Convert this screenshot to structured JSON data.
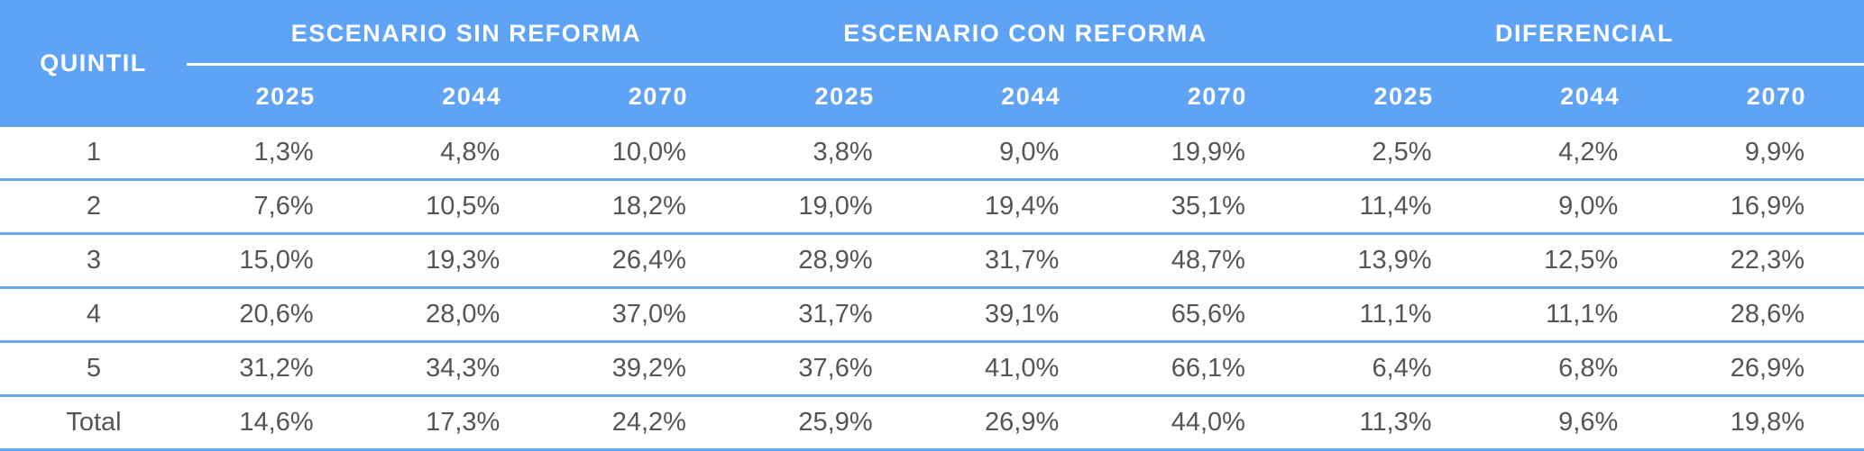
{
  "header": {
    "quintil": "QUINTIL",
    "groups": [
      "ESCENARIO SIN REFORMA",
      "ESCENARIO CON REFORMA",
      "DIFERENCIAL"
    ],
    "years": [
      "2025",
      "2044",
      "2070",
      "2025",
      "2044",
      "2070",
      "2025",
      "2044",
      "2070"
    ]
  },
  "rows": [
    {
      "quintil": "1",
      "values": [
        "1,3%",
        "4,8%",
        "10,0%",
        "3,8%",
        "9,0%",
        "19,9%",
        "2,5%",
        "4,2%",
        "9,9%"
      ]
    },
    {
      "quintil": "2",
      "values": [
        "7,6%",
        "10,5%",
        "18,2%",
        "19,0%",
        "19,4%",
        "35,1%",
        "11,4%",
        "9,0%",
        "16,9%"
      ]
    },
    {
      "quintil": "3",
      "values": [
        "15,0%",
        "19,3%",
        "26,4%",
        "28,9%",
        "31,7%",
        "48,7%",
        "13,9%",
        "12,5%",
        "22,3%"
      ]
    },
    {
      "quintil": "4",
      "values": [
        "20,6%",
        "28,0%",
        "37,0%",
        "31,7%",
        "39,1%",
        "65,6%",
        "11,1%",
        "11,1%",
        "28,6%"
      ]
    },
    {
      "quintil": "5",
      "values": [
        "31,2%",
        "34,3%",
        "39,2%",
        "37,6%",
        "41,0%",
        "66,1%",
        "6,4%",
        "6,8%",
        "26,9%"
      ]
    },
    {
      "quintil": "Total",
      "values": [
        "14,6%",
        "17,3%",
        "24,2%",
        "25,9%",
        "26,9%",
        "44,0%",
        "11,3%",
        "9,6%",
        "19,8%"
      ]
    }
  ],
  "colors": {
    "header_bg": "#5fa3f7",
    "row_border": "#6aa8f5",
    "text": "#555555"
  }
}
